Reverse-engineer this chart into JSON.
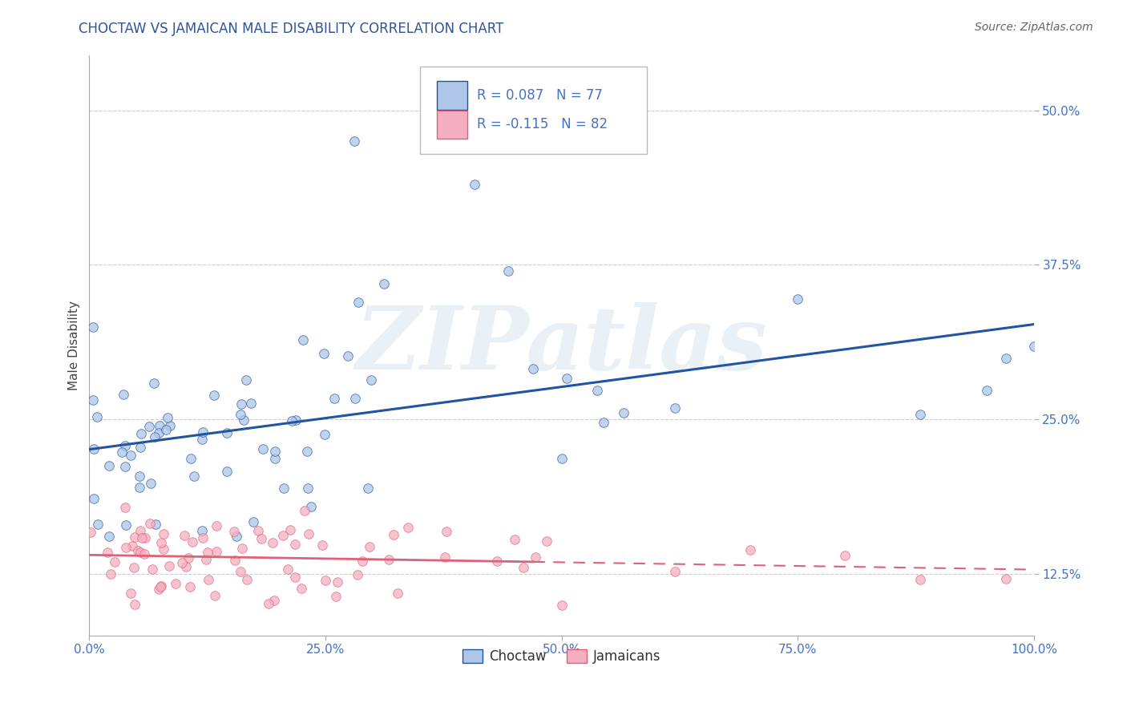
{
  "title": "CHOCTAW VS JAMAICAN MALE DISABILITY CORRELATION CHART",
  "source_text": "Source: ZipAtlas.com",
  "ylabel": "Male Disability",
  "watermark": "ZIPatlas",
  "choctaw_color": "#aec6e8",
  "jamaican_color": "#f4afc0",
  "choctaw_line_color": "#2155a0",
  "jamaican_line_color": "#e0607a",
  "background_color": "#ffffff",
  "xlim": [
    0.0,
    1.0
  ],
  "ylim": [
    0.075,
    0.545
  ],
  "xticks": [
    0.0,
    0.25,
    0.5,
    0.75,
    1.0
  ],
  "xticklabels": [
    "0.0%",
    "25.0%",
    "50.0%",
    "75.0%",
    "100.0%"
  ],
  "yticks": [
    0.125,
    0.25,
    0.375,
    0.5
  ],
  "yticklabels": [
    "12.5%",
    "25.0%",
    "37.5%",
    "50.0%"
  ]
}
